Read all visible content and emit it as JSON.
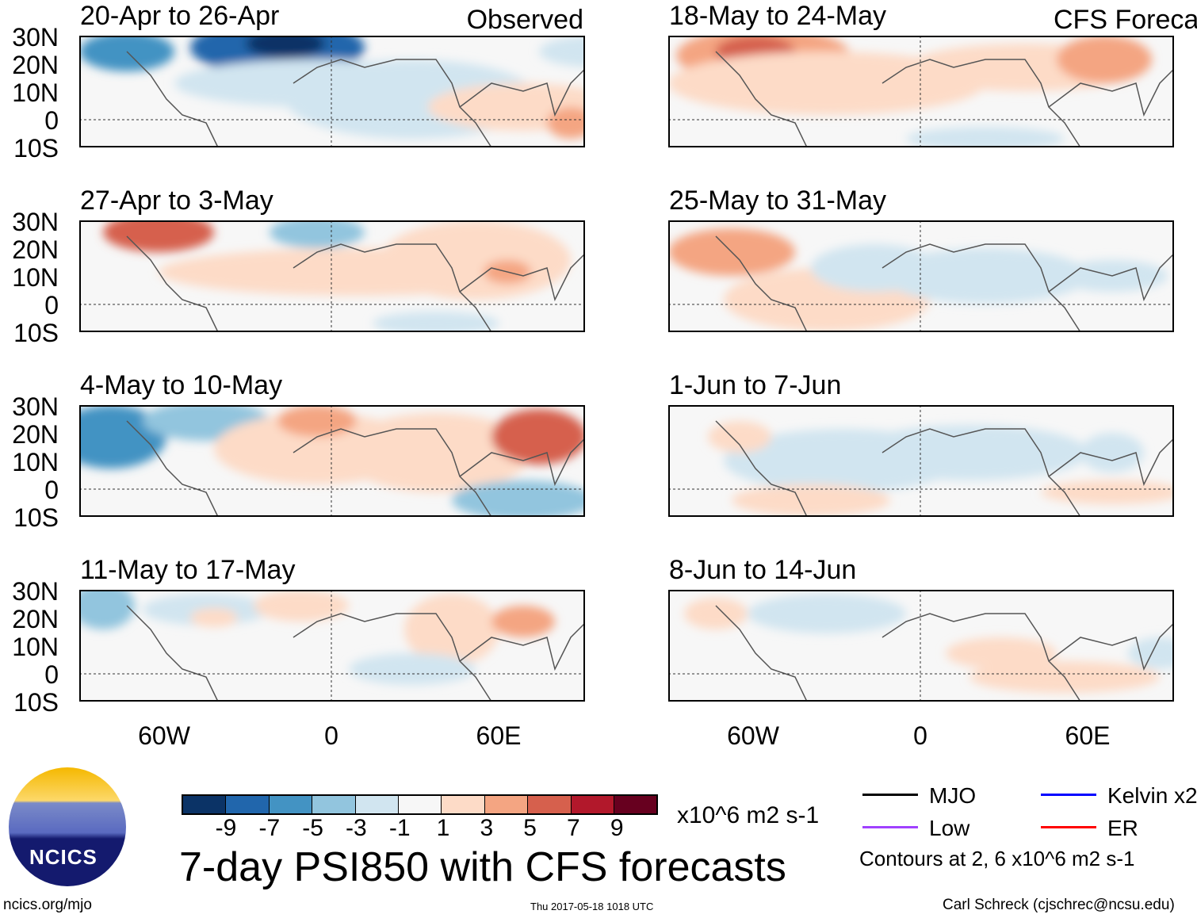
{
  "panels_left": [
    {
      "title": "20-Apr to 26-Apr",
      "tag": "Observed"
    },
    {
      "title": "27-Apr to 3-May"
    },
    {
      "title": "4-May to 10-May"
    },
    {
      "title": "11-May to 17-May"
    }
  ],
  "panels_right": [
    {
      "title": "18-May to 24-May",
      "tag": "CFS Forecast"
    },
    {
      "title": "25-May to 31-May"
    },
    {
      "title": "1-Jun to 7-Jun"
    },
    {
      "title": "8-Jun to 14-Jun"
    }
  ],
  "lat_labels": [
    "30N",
    "20N",
    "10N",
    "0",
    "10S"
  ],
  "lon_labels": [
    "60W",
    "0",
    "60E"
  ],
  "colorbar": {
    "colors": [
      "#0b3366",
      "#2166ac",
      "#4393c3",
      "#92c5de",
      "#d1e5f0",
      "#f7f7f7",
      "#fddbc7",
      "#f4a582",
      "#d6604d",
      "#b2182b",
      "#67001f"
    ],
    "labels": [
      "-9",
      "-7",
      "-5",
      "-3",
      "-1",
      "1",
      "3",
      "5",
      "7",
      "9"
    ],
    "units": "x10^6 m2 s-1"
  },
  "title": "7-day PSI850 with CFS forecasts",
  "legend": {
    "items": [
      {
        "label": "MJO",
        "color": "#000000"
      },
      {
        "label": "Kelvin x2",
        "color": "#0000ff"
      },
      {
        "label": "Low",
        "color": "#a040ff"
      },
      {
        "label": "ER",
        "color": "#ff0000"
      }
    ],
    "contours_note": "Contours at 2, 6 x10^6 m2 s-1"
  },
  "logo_text": "NCICS",
  "footer": {
    "url": "ncics.org/mjo",
    "timestamp": "Thu 2017-05-18 1018 UTC",
    "author": "Carl Schreck (cjschrec@ncsu.edu)"
  }
}
